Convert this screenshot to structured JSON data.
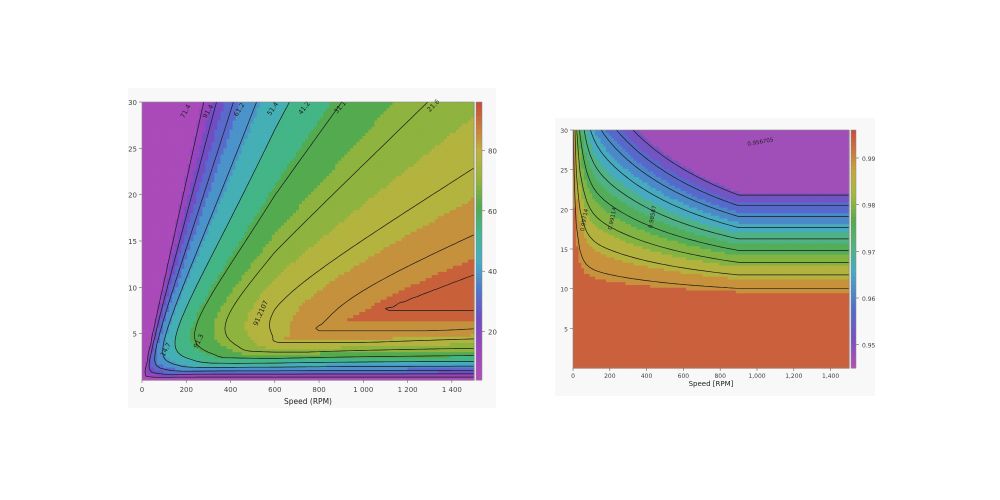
{
  "chart_data": [
    {
      "type": "contour",
      "title": "",
      "xlabel": "Speed (RPM)",
      "ylabel": "",
      "xlim": [
        0,
        1500
      ],
      "ylim": [
        0,
        30
      ],
      "x_ticks": [
        "0",
        "200",
        "400",
        "600",
        "800",
        "1 000",
        "1 200",
        "1 400"
      ],
      "y_ticks": [
        "5",
        "10",
        "15",
        "20",
        "25",
        "30"
      ],
      "colorbar_ticks": [
        "20",
        "40",
        "60",
        "80"
      ],
      "colorbar_range": [
        4,
        96
      ],
      "levels": [
        8.6,
        17.1,
        25.7,
        34.3,
        42.9,
        51.4,
        60,
        68.6,
        77.1,
        85.7,
        91
      ],
      "contour_labels": [
        "71.4",
        "91.4",
        "61.2",
        "51.4",
        "41.2",
        "31.1",
        "21.6",
        "14.7",
        "91.3",
        "91.2107"
      ],
      "grid": false
    },
    {
      "type": "contour",
      "title": "",
      "xlabel": "Speed [RPM]",
      "ylabel": "",
      "xlim": [
        0,
        1500
      ],
      "ylim": [
        0,
        30
      ],
      "x_ticks": [
        "0",
        "200",
        "400",
        "600",
        "800",
        "1,000",
        "1,200",
        "1,400"
      ],
      "y_ticks": [
        "5",
        "10",
        "15",
        "20",
        "25",
        "30"
      ],
      "colorbar_ticks": [
        "0.95",
        "0.96",
        "0.97",
        "0.98",
        "0.99"
      ],
      "colorbar_range": [
        0.945,
        0.996
      ],
      "contour_labels": [
        "0.99714",
        "0.99114",
        "0.98587",
        "0.956705"
      ],
      "grid": false
    }
  ]
}
